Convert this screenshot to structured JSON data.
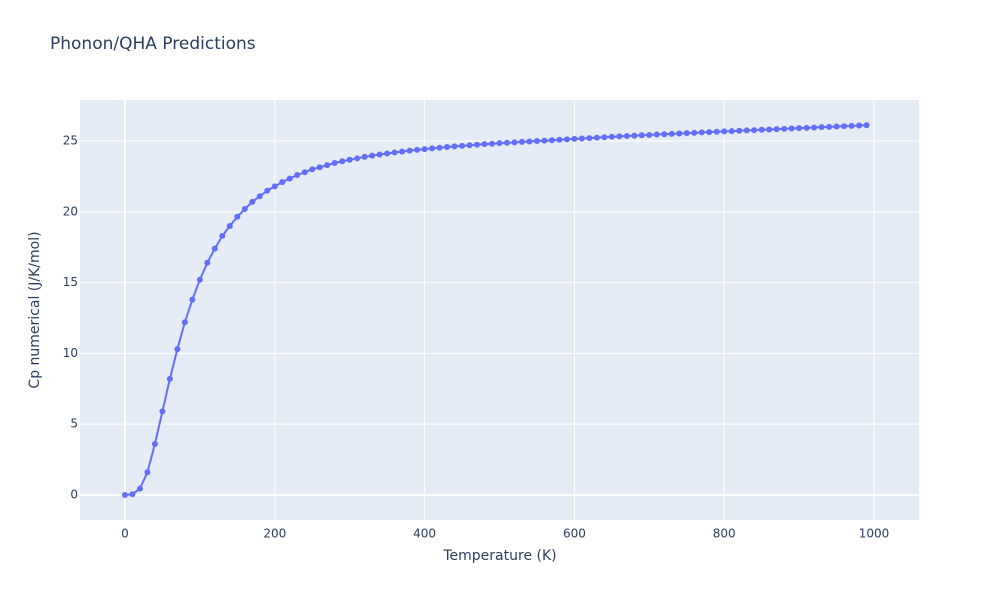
{
  "chart_data": {
    "type": "line",
    "title": "Phonon/QHA Predictions",
    "x_label": "Temperature (K)",
    "y_label": "Cp numerical (J/K/mol)",
    "xlim": [
      -60,
      1060
    ],
    "ylim": [
      -1.77,
      27.9
    ],
    "xticks": [
      0,
      200,
      400,
      600,
      800,
      1000
    ],
    "yticks": [
      0,
      5,
      10,
      15,
      20,
      25
    ],
    "grid": true,
    "background": "#e5ecf6",
    "x": [
      0,
      10,
      20,
      30,
      40,
      50,
      60,
      70,
      80,
      90,
      100,
      110,
      120,
      130,
      140,
      150,
      160,
      170,
      180,
      190,
      200,
      210,
      220,
      230,
      240,
      250,
      260,
      270,
      280,
      290,
      300,
      310,
      320,
      330,
      340,
      350,
      360,
      370,
      380,
      390,
      400,
      410,
      420,
      430,
      440,
      450,
      460,
      470,
      480,
      490,
      500,
      510,
      520,
      530,
      540,
      550,
      560,
      570,
      580,
      590,
      600,
      610,
      620,
      630,
      640,
      650,
      660,
      670,
      680,
      690,
      700,
      710,
      720,
      730,
      740,
      750,
      760,
      770,
      780,
      790,
      800,
      810,
      820,
      830,
      840,
      850,
      860,
      870,
      880,
      890,
      900,
      910,
      920,
      930,
      940,
      950,
      960,
      970,
      980,
      990
    ],
    "series": [
      {
        "color": "#636efa",
        "values": [
          0,
          0.05,
          0.45,
          1.6,
          3.6,
          5.9,
          8.2,
          10.3,
          12.2,
          13.8,
          15.2,
          16.4,
          17.4,
          18.3,
          19.0,
          19.65,
          20.2,
          20.7,
          21.1,
          21.5,
          21.8,
          22.1,
          22.35,
          22.6,
          22.8,
          23.0,
          23.15,
          23.3,
          23.45,
          23.57,
          23.68,
          23.78,
          23.88,
          23.97,
          24.05,
          24.12,
          24.19,
          24.26,
          24.32,
          24.38,
          24.43,
          24.48,
          24.53,
          24.58,
          24.62,
          24.66,
          24.7,
          24.74,
          24.78,
          24.81,
          24.85,
          24.88,
          24.91,
          24.94,
          24.97,
          25.0,
          25.03,
          25.06,
          25.09,
          25.12,
          25.15,
          25.18,
          25.21,
          25.24,
          25.27,
          25.3,
          25.33,
          25.36,
          25.38,
          25.41,
          25.43,
          25.46,
          25.48,
          25.51,
          25.53,
          25.56,
          25.58,
          25.61,
          25.63,
          25.66,
          25.68,
          25.7,
          25.73,
          25.75,
          25.77,
          25.8,
          25.82,
          25.84,
          25.86,
          25.89,
          25.91,
          25.93,
          25.96,
          25.98,
          26.0,
          26.03,
          26.05,
          26.07,
          26.1,
          26.12
        ]
      }
    ]
  }
}
